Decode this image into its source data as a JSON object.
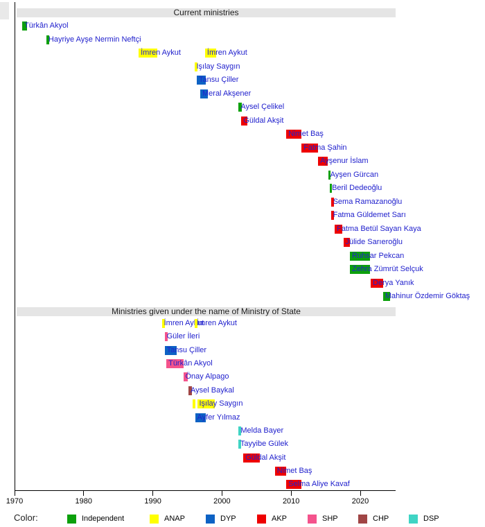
{
  "chart_data": {
    "type": "timeline",
    "axis": {
      "min_year": 1970,
      "max_year": 2025,
      "ticks": [
        1970,
        1980,
        1990,
        2000,
        2010,
        2020
      ]
    },
    "legend": {
      "label": "Color:",
      "items": [
        {
          "name": "Independent",
          "color": "#0ca00c"
        },
        {
          "name": "ANAP",
          "color": "#ffff00"
        },
        {
          "name": "DYP",
          "color": "#0d62c4"
        },
        {
          "name": "AKP",
          "color": "#ee0000"
        },
        {
          "name": "SHP",
          "color": "#f4538c"
        },
        {
          "name": "CHP",
          "color": "#a04545"
        },
        {
          "name": "DSP",
          "color": "#3fd4c4"
        }
      ]
    },
    "sections": [
      {
        "title": "Current ministries",
        "rows": [
          {
            "name": "Türkân Akyol",
            "bars": [
              {
                "party": "Independent",
                "start": 1971.1,
                "end": 1971.8
              }
            ]
          },
          {
            "name": "Hayriye Ayşe Nermin Neftçi",
            "bars": [
              {
                "party": "Independent",
                "start": 1974.6,
                "end": 1975.05
              }
            ]
          },
          {
            "name": "İmren Aykut",
            "bars": [
              {
                "party": "ANAP",
                "start": 1987.95,
                "end": 1990.65
              },
              {
                "party": "ANAP",
                "start": 1997.55,
                "end": 1999.15
              }
            ]
          },
          {
            "name": "Işılay Saygın",
            "bars": [
              {
                "party": "ANAP",
                "start": 1996.0,
                "end": 1996.45
              }
            ]
          },
          {
            "name": "Tansu Çiller",
            "bars": [
              {
                "party": "DYP",
                "start": 1996.35,
                "end": 1997.65
              }
            ]
          },
          {
            "name": "Meral Akşener",
            "bars": [
              {
                "party": "DYP",
                "start": 1996.85,
                "end": 1997.95
              }
            ]
          },
          {
            "name": "Aysel Çelikel",
            "bars": [
              {
                "party": "Independent",
                "start": 2002.4,
                "end": 2002.85
              }
            ]
          },
          {
            "name": "Güldal Akşit",
            "bars": [
              {
                "party": "AKP",
                "start": 2002.8,
                "end": 2003.65
              }
            ]
          },
          {
            "name": "Nimet Baş",
            "bars": [
              {
                "party": "AKP",
                "start": 2009.3,
                "end": 2011.45
              }
            ]
          },
          {
            "name": "Fatma Şahin",
            "bars": [
              {
                "party": "AKP",
                "start": 2011.5,
                "end": 2013.85
              }
            ]
          },
          {
            "name": "Ayşenur İslam",
            "bars": [
              {
                "party": "AKP",
                "start": 2013.9,
                "end": 2015.3
              }
            ]
          },
          {
            "name": "Ayşen Gürcan",
            "bars": [
              {
                "party": "Independent",
                "start": 2015.35,
                "end": 2015.7
              }
            ]
          },
          {
            "name": "Beril Dedeoğlu",
            "bars": [
              {
                "party": "Independent",
                "start": 2015.6,
                "end": 2015.9
              }
            ]
          },
          {
            "name": "Sema Ramazanoğlu",
            "bars": [
              {
                "party": "AKP",
                "start": 2015.75,
                "end": 2016.2
              }
            ]
          },
          {
            "name": "Fatma Güldemet Sarı",
            "bars": [
              {
                "party": "AKP",
                "start": 2015.75,
                "end": 2016.2
              }
            ]
          },
          {
            "name": "Fatma Betül Sayan Kaya",
            "bars": [
              {
                "party": "AKP",
                "start": 2016.3,
                "end": 2017.35
              }
            ]
          },
          {
            "name": "Jülide Sarıeroğlu",
            "bars": [
              {
                "party": "AKP",
                "start": 2017.55,
                "end": 2018.45
              }
            ]
          },
          {
            "name": "Ruhsar Pekcan",
            "bars": [
              {
                "party": "Independent",
                "start": 2018.5,
                "end": 2021.4
              }
            ]
          },
          {
            "name": "Zehra Zümrüt Selçuk",
            "bars": [
              {
                "party": "Independent",
                "start": 2018.5,
                "end": 2021.4
              }
            ]
          },
          {
            "name": "Derya Yanık",
            "bars": [
              {
                "party": "AKP",
                "start": 2021.5,
                "end": 2023.3
              }
            ]
          },
          {
            "name": "Mahinur Özdemir Göktaş",
            "bars": [
              {
                "party": "Independent",
                "start": 2023.3,
                "end": 2024.3
              }
            ]
          }
        ]
      },
      {
        "title": "Ministries given under the name of Ministry of State",
        "rows": [
          {
            "name": "İmren Aykut",
            "bars": [
              {
                "party": "ANAP",
                "start": 1991.3,
                "end": 1991.7
              },
              {
                "party": "ANAP",
                "start": 1996.05,
                "end": 1996.45
              }
            ]
          },
          {
            "name": "Güler İleri",
            "bars": [
              {
                "party": "SHP",
                "start": 1991.7,
                "end": 1992.15
              }
            ]
          },
          {
            "name": "Tansu Çiller",
            "bars": [
              {
                "party": "DYP",
                "start": 1991.7,
                "end": 1993.4
              }
            ]
          },
          {
            "name": "Türkân Akyol",
            "bars": [
              {
                "party": "SHP",
                "start": 1991.95,
                "end": 1994.5
              }
            ]
          },
          {
            "name": "Önay Alpago",
            "bars": [
              {
                "party": "SHP",
                "start": 1994.4,
                "end": 1995.0
              }
            ]
          },
          {
            "name": "Aysel Baykal",
            "bars": [
              {
                "party": "CHP",
                "start": 1995.15,
                "end": 1995.6
              }
            ]
          },
          {
            "name": "Işılay Saygın",
            "bars": [
              {
                "party": "ANAP",
                "start": 1995.7,
                "end": 1996.1,
                "show_label": false
              },
              {
                "party": "ANAP",
                "start": 1996.4,
                "end": 1999.0
              }
            ]
          },
          {
            "name": "Ayfer Yılmaz",
            "bars": [
              {
                "party": "DYP",
                "start": 1996.1,
                "end": 1997.6
              }
            ]
          },
          {
            "name": "Melda Bayer",
            "bars": [
              {
                "party": "DSP",
                "start": 2002.4,
                "end": 2002.8
              }
            ]
          },
          {
            "name": "Tayyibe Gülek",
            "bars": [
              {
                "party": "DSP",
                "start": 2002.35,
                "end": 2002.8
              }
            ]
          },
          {
            "name": "Güldal Akşit",
            "bars": [
              {
                "party": "AKP",
                "start": 2003.1,
                "end": 2005.5
              }
            ]
          },
          {
            "name": "Nimet Baş",
            "bars": [
              {
                "party": "AKP",
                "start": 2007.65,
                "end": 2009.3
              }
            ]
          },
          {
            "name": "Selma Aliye Kavaf",
            "bars": [
              {
                "party": "AKP",
                "start": 2009.3,
                "end": 2011.5
              }
            ]
          }
        ]
      }
    ]
  }
}
